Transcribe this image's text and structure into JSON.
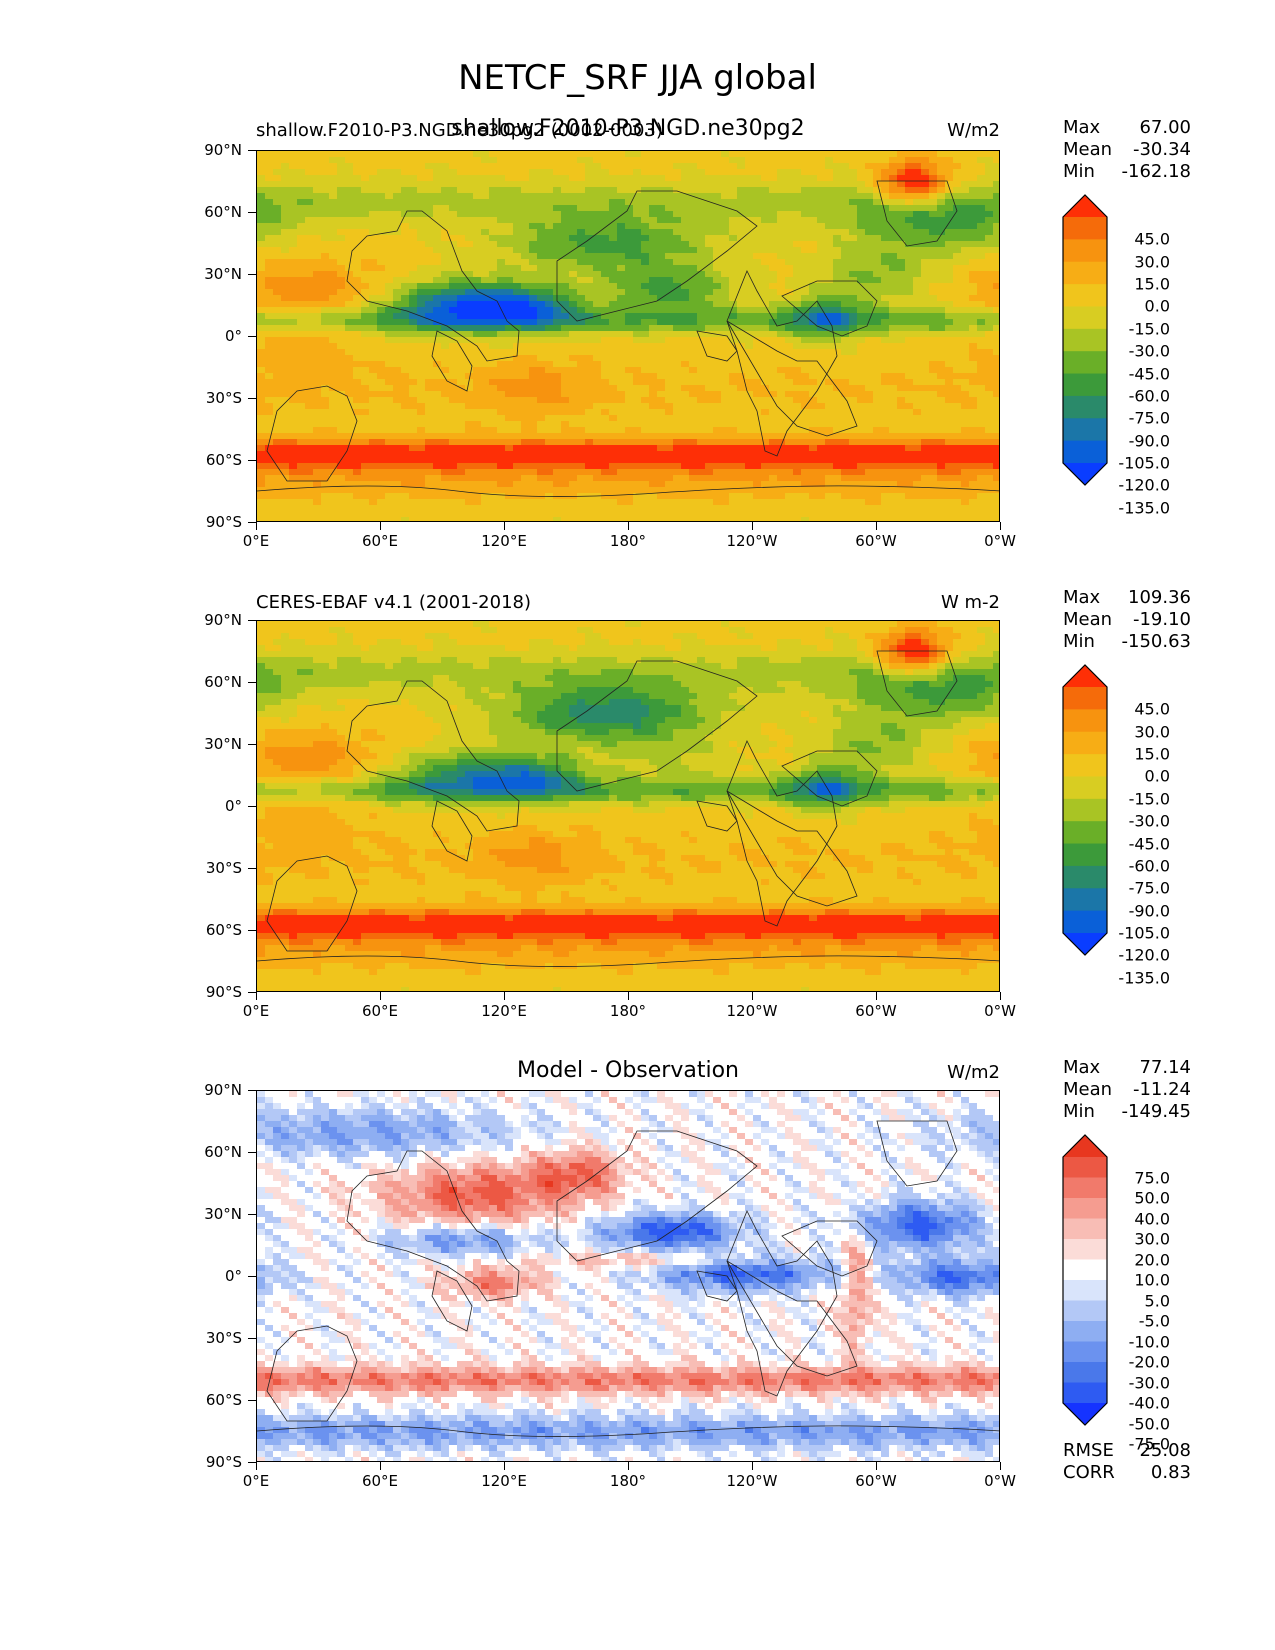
{
  "title": "NETCF_SRF JJA global",
  "x_ticks": [
    "0°E",
    "60°E",
    "120°E",
    "180°",
    "120°W",
    "60°W",
    "0°W"
  ],
  "y_ticks": [
    "90°N",
    "60°N",
    "30°N",
    "0°",
    "30°S",
    "60°S",
    "90°S"
  ],
  "colors": {
    "abs_levels": [
      "#0a3dff",
      "#0a60d8",
      "#1b76a8",
      "#2a8a6a",
      "#3c9a3a",
      "#6aaf28",
      "#a9c424",
      "#d8cd22",
      "#f0c51c",
      "#f7ad15",
      "#f7930f",
      "#f56b0a",
      "#fe2f06"
    ],
    "diff_levels": [
      "#1533ff",
      "#2e5bf2",
      "#4a78ea",
      "#6b92ef",
      "#8eaef2",
      "#b3c8f6",
      "#d9e4fb",
      "#ffffff",
      "#fbdcd8",
      "#f8bdb5",
      "#f59c90",
      "#f17a6b",
      "#ec5844",
      "#e8371f"
    ]
  },
  "chart_data": [
    {
      "type": "heatmap",
      "subtitle_left": "shallow.F2010-P3.NGD.ne30pg2 (0002-0003)",
      "subtitle_center": "shallow.F2010-P3.NGD.ne30pg2",
      "units": "W/m2",
      "stats": {
        "max_label": "Max",
        "max": "67.00",
        "mean_label": "Mean",
        "mean": "-30.34",
        "min_label": "Min",
        "min": "-162.18"
      },
      "colorbar_levels": [
        "45.0",
        "30.0",
        "15.0",
        "0.0",
        "-15.0",
        "-30.0",
        "-45.0",
        "-60.0",
        "-75.0",
        "-90.0",
        "-105.0",
        "-120.0",
        "-135.0"
      ],
      "xlim": [
        0,
        360
      ],
      "ylim": [
        -90,
        90
      ]
    },
    {
      "type": "heatmap",
      "subtitle_left": "CERES-EBAF v4.1 (2001-2018)",
      "units": "W m-2",
      "stats": {
        "max_label": "Max",
        "max": "109.36",
        "mean_label": "Mean",
        "mean": "-19.10",
        "min_label": "Min",
        "min": "-150.63"
      },
      "colorbar_levels": [
        "45.0",
        "30.0",
        "15.0",
        "0.0",
        "-15.0",
        "-30.0",
        "-45.0",
        "-60.0",
        "-75.0",
        "-90.0",
        "-105.0",
        "-120.0",
        "-135.0"
      ],
      "xlim": [
        0,
        360
      ],
      "ylim": [
        -90,
        90
      ]
    },
    {
      "type": "heatmap",
      "subtitle_center": "Model - Observation",
      "units": "W/m2",
      "stats": {
        "max_label": "Max",
        "max": "77.14",
        "mean_label": "Mean",
        "mean": "-11.24",
        "min_label": "Min",
        "min": "-149.45",
        "rmse_label": "RMSE",
        "rmse": "25.08",
        "corr_label": "CORR",
        "corr": "0.83"
      },
      "colorbar_levels": [
        "75.0",
        "50.0",
        "40.0",
        "30.0",
        "20.0",
        "10.0",
        "5.0",
        "-5.0",
        "-10.0",
        "-20.0",
        "-30.0",
        "-40.0",
        "-50.0",
        "-75.0"
      ],
      "xlim": [
        0,
        360
      ],
      "ylim": [
        -90,
        90
      ]
    }
  ]
}
